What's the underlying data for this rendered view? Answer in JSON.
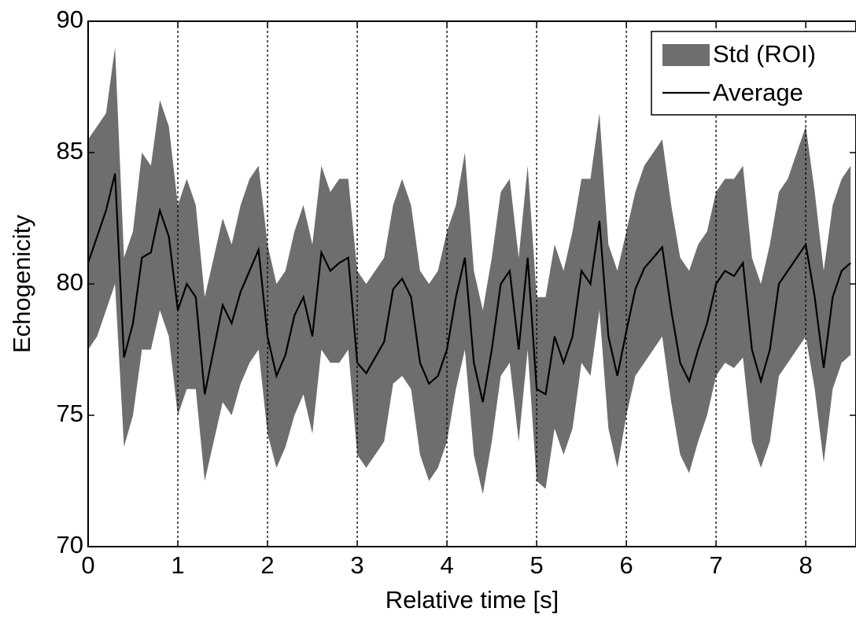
{
  "chart_data": {
    "type": "line",
    "xlabel": "Relative time [s]",
    "ylabel": "Echogenicity",
    "x": [
      0,
      0.1,
      0.2,
      0.3,
      0.4,
      0.5,
      0.6,
      0.7,
      0.8,
      0.9,
      1,
      1.1,
      1.2,
      1.3,
      1.4,
      1.5,
      1.6,
      1.7,
      1.8,
      1.9,
      2,
      2.1,
      2.2,
      2.3,
      2.4,
      2.5,
      2.6,
      2.7,
      2.8,
      2.9,
      3,
      3.1,
      3.2,
      3.3,
      3.4,
      3.5,
      3.6,
      3.7,
      3.8,
      3.9,
      4,
      4.1,
      4.2,
      4.3,
      4.4,
      4.5,
      4.6,
      4.7,
      4.8,
      4.9,
      5,
      5.1,
      5.2,
      5.3,
      5.4,
      5.5,
      5.6,
      5.7,
      5.8,
      5.9,
      6,
      6.1,
      6.2,
      6.3,
      6.4,
      6.5,
      6.6,
      6.7,
      6.8,
      6.9,
      7,
      7.1,
      7.2,
      7.3,
      7.4,
      7.5,
      7.6,
      7.7,
      7.8,
      7.9,
      8,
      8.1,
      8.2,
      8.3,
      8.4,
      8.5
    ],
    "band": {
      "name": "Std (ROI)",
      "color": "#6e6e6e",
      "high": [
        85.5,
        86,
        86.5,
        89,
        81,
        82,
        85,
        84.5,
        87,
        86,
        83,
        84,
        83,
        79.5,
        81,
        82.5,
        81.5,
        83,
        84,
        84.5,
        81.5,
        80,
        80.5,
        82,
        83,
        81.5,
        84.5,
        83.5,
        84,
        84,
        80.5,
        80,
        80.5,
        81,
        83,
        84,
        83,
        80.5,
        80,
        80.5,
        82,
        83,
        85,
        80.5,
        79,
        81,
        83.5,
        84,
        81,
        84.5,
        79.5,
        79.5,
        81.5,
        80.5,
        82,
        84,
        84,
        86.5,
        81.5,
        80.5,
        82,
        83.5,
        84.5,
        85,
        85.5,
        83,
        81,
        80.5,
        81.5,
        82,
        83.5,
        84,
        84,
        84.5,
        81,
        80,
        81.5,
        83.5,
        84,
        85,
        86,
        83.5,
        80.5,
        83,
        84,
        84.5
      ],
      "low": [
        77.5,
        78,
        79,
        80,
        73.8,
        75,
        77.5,
        77.5,
        79,
        78,
        75,
        76,
        76,
        72.5,
        74,
        75.5,
        75,
        76.2,
        77,
        77.5,
        74.3,
        73,
        73.8,
        75,
        75.8,
        74.3,
        77.5,
        77,
        77,
        77.5,
        73.5,
        73,
        73.5,
        74,
        76.2,
        76.5,
        76,
        73.5,
        72.5,
        73,
        74,
        76,
        77.5,
        73.5,
        72,
        74,
        76.5,
        77,
        74,
        77.5,
        72.5,
        72.2,
        74.5,
        73.5,
        74.5,
        77,
        76.5,
        79,
        74.5,
        73,
        75,
        76.5,
        77,
        77.5,
        78,
        75.5,
        73.5,
        72.8,
        74,
        75,
        76.5,
        77,
        76.8,
        77.2,
        74,
        73,
        74,
        76.5,
        77,
        77.5,
        78,
        76,
        73.2,
        76,
        77,
        77.3
      ]
    },
    "series": [
      {
        "name": "Average",
        "color": "#000000",
        "values": [
          80.8,
          81.8,
          82.8,
          84.2,
          77.2,
          78.5,
          81,
          81.2,
          82.8,
          81.8,
          79,
          80,
          79.5,
          75.8,
          77.5,
          79.2,
          78.5,
          79.7,
          80.5,
          81.3,
          78,
          76.5,
          77.3,
          78.8,
          79.5,
          78,
          81.2,
          80.5,
          80.8,
          81,
          77,
          76.6,
          77.2,
          77.8,
          79.8,
          80.2,
          79.5,
          77,
          76.2,
          76.5,
          77.5,
          79.5,
          81,
          77,
          75.5,
          77.5,
          80,
          80.5,
          77.5,
          81,
          76,
          75.8,
          78,
          77,
          78,
          80.5,
          80,
          82.4,
          78,
          76.5,
          78.2,
          79.8,
          80.6,
          81,
          81.4,
          79,
          77,
          76.3,
          77.5,
          78.5,
          80,
          80.5,
          80.3,
          80.8,
          77.5,
          76.3,
          77.5,
          80,
          80.5,
          81,
          81.5,
          79.5,
          76.8,
          79.5,
          80.5,
          80.8
        ]
      }
    ],
    "xlim": [
      0,
      8.56
    ],
    "ylim": [
      70,
      90
    ],
    "xticks": [
      0,
      1,
      2,
      3,
      4,
      5,
      6,
      7,
      8
    ],
    "yticks": [
      70,
      75,
      80,
      85,
      90
    ],
    "xgrid": true,
    "legend": "upper right"
  }
}
